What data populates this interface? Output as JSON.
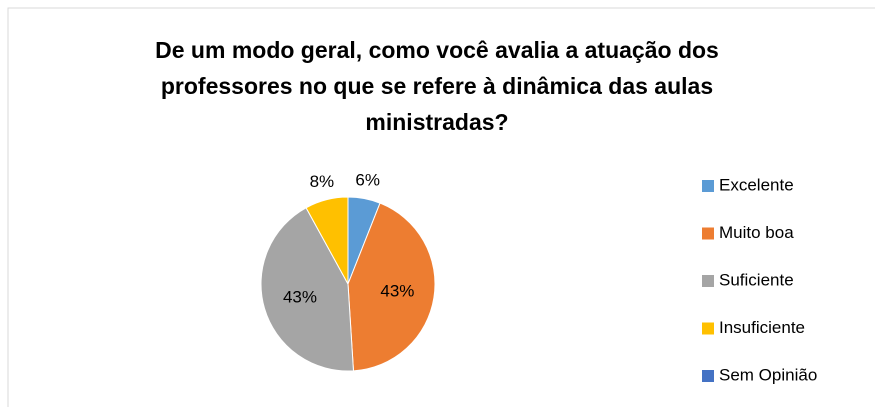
{
  "chart_data": {
    "type": "pie",
    "title": "De um modo geral, como você avalia a atuação dos professores no que se refere à dinâmica das aulas ministradas?",
    "categories": [
      "Excelente",
      "Muito boa",
      "Suficiente",
      "Insuficiente",
      "Sem Opinião"
    ],
    "values": [
      6,
      43,
      43,
      8,
      0
    ],
    "value_labels": [
      "6%",
      "43%",
      "43%",
      "8%",
      null
    ],
    "colors": [
      "#5b9bd5",
      "#ed7d31",
      "#a5a5a5",
      "#ffc000",
      "#4472c4"
    ],
    "legend": "right"
  }
}
